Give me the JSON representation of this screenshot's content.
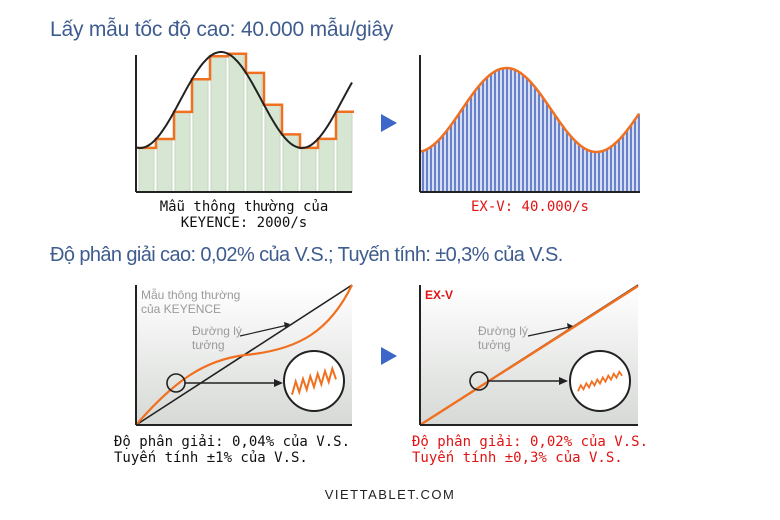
{
  "headings": {
    "sampling": "Lấy mẫu tốc độ cao: 40.000 mẫu/giây",
    "resolution": "Độ phân giải cao: 0,02% của V.S.; Tuyến tính: ±0,3% của V.S."
  },
  "sampling_panels": {
    "keyence_caption_line1": "Mẫu thông thường của",
    "keyence_caption_line2": "KEYENCE: 2000/s",
    "exv_caption": "EX-V: 40.000/s"
  },
  "linearity_panels": {
    "keyence_label_line1": "Mẫu thông thường",
    "keyence_label_line2": "của KEYENCE",
    "exv_label": "EX-V",
    "ideal_line_left_1": "Đường lý",
    "ideal_line_left_2": "tưởng",
    "ideal_line_right_1": "Đường lý",
    "ideal_line_right_2": "tưởng",
    "keyence_caption_line1": "Độ phân giải: 0,04% của V.S.",
    "keyence_caption_line2": "Tuyến tính ±1% của V.S.",
    "exv_caption_line1": "Độ phân giải: 0,02% của V.S.",
    "exv_caption_line2": "Tuyến tính ±0,3% của V.S."
  },
  "footer": "VIETTABLET.COM",
  "colors": {
    "heading": "#3f5c8f",
    "accent_orange": "#f07020",
    "accent_red": "#e01414",
    "bar_blue": "#4a6bc4",
    "arrow_blue": "#3c66c8"
  }
}
